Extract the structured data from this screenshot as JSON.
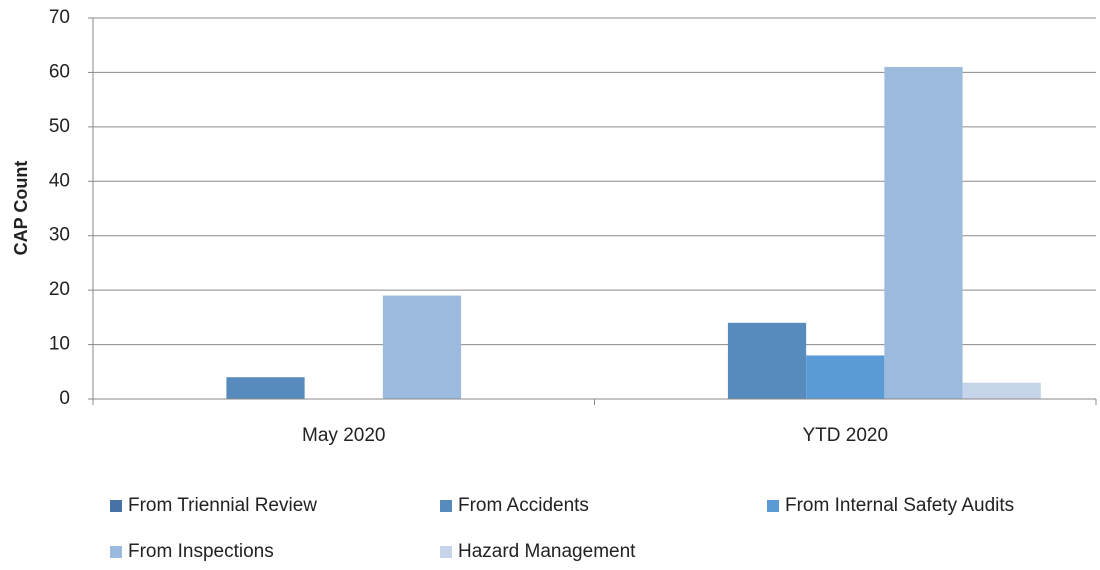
{
  "chart_data": {
    "type": "bar",
    "ylabel": "CAP Count",
    "categories": [
      "May 2020",
      "YTD 2020"
    ],
    "series": [
      {
        "name": "From Triennial Review",
        "color": "#4672a8",
        "values": [
          0,
          0
        ]
      },
      {
        "name": "From Accidents",
        "color": "#588bbd",
        "values": [
          4,
          14
        ]
      },
      {
        "name": "From Internal Safety Audits",
        "color": "#5b9bd5",
        "values": [
          0,
          8
        ]
      },
      {
        "name": "From Inspections",
        "color": "#9bbadd",
        "values": [
          19,
          61
        ]
      },
      {
        "name": "Hazard Management",
        "color": "#c6d4ea",
        "values": [
          0,
          3
        ]
      }
    ],
    "ylim": [
      0,
      70
    ],
    "yticks": [
      0,
      10,
      20,
      30,
      40,
      50,
      60,
      70
    ],
    "grid": true
  }
}
